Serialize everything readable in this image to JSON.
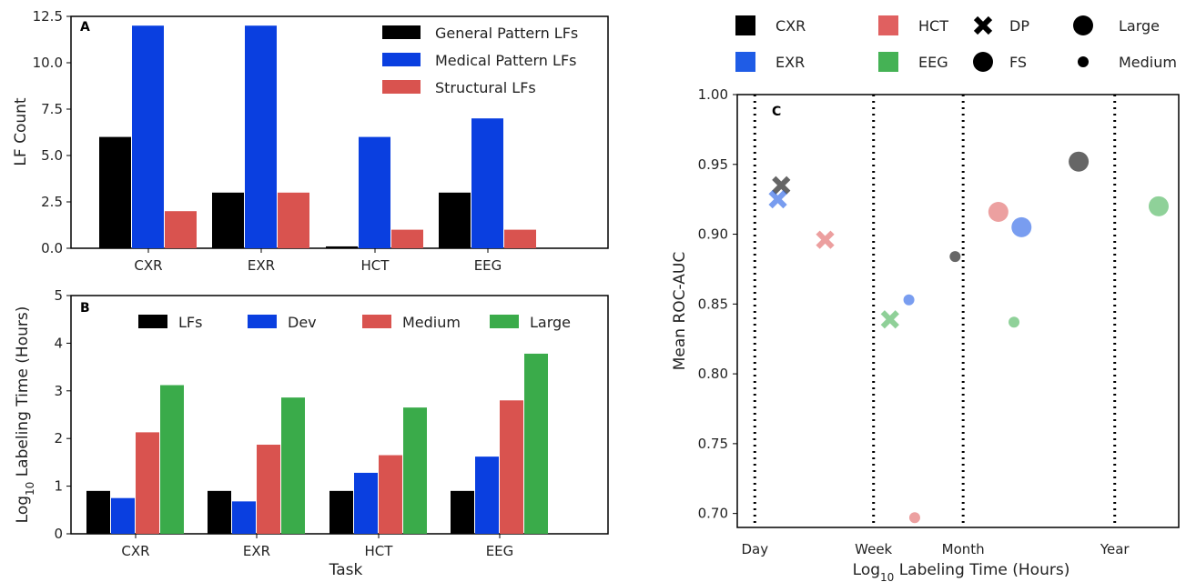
{
  "chart_data": [
    {
      "panel": "A",
      "type": "bar",
      "categories": [
        "CXR",
        "EXR",
        "HCT",
        "EEG"
      ],
      "series": [
        {
          "name": "General Pattern LFs",
          "values": [
            6,
            3,
            0.1,
            3
          ],
          "color": "#000000"
        },
        {
          "name": "Medical Pattern LFs",
          "values": [
            12,
            12,
            6,
            7
          ],
          "color": "#0a3fe0"
        },
        {
          "name": "Structural LFs",
          "values": [
            2,
            3,
            1,
            1
          ],
          "color": "#d9534f"
        }
      ],
      "xlabel": "",
      "ylabel": "LF Count",
      "ylim": [
        0,
        12.5
      ],
      "yticks": [
        "0.0",
        "2.5",
        "5.0",
        "7.5",
        "10.0",
        "12.5"
      ],
      "legend_position": "top-right"
    },
    {
      "panel": "B",
      "type": "bar",
      "categories": [
        "CXR",
        "EXR",
        "HCT",
        "EEG"
      ],
      "series": [
        {
          "name": "LFs",
          "values": [
            0.9,
            0.9,
            0.9,
            0.9
          ],
          "color": "#000000"
        },
        {
          "name": "Dev",
          "values": [
            0.75,
            0.68,
            1.28,
            1.62
          ],
          "color": "#0a3fe0"
        },
        {
          "name": "Medium",
          "values": [
            2.13,
            1.87,
            1.65,
            2.8
          ],
          "color": "#d9534f"
        },
        {
          "name": "Large",
          "values": [
            3.12,
            2.86,
            2.65,
            3.78
          ],
          "color": "#3aab4a"
        }
      ],
      "xlabel": "Task",
      "ylabel_pre": "Log",
      "ylabel_sub": "10",
      "ylabel_post": " Labeling Time (Hours)",
      "ylim": [
        0,
        5
      ],
      "yticks": [
        "0",
        "1",
        "2",
        "3",
        "4",
        "5"
      ],
      "legend_position": "top"
    },
    {
      "panel": "C",
      "type": "scatter",
      "xlabel_pre": "Log",
      "xlabel_sub": "10",
      "xlabel_post": " Labeling Time (Hours)",
      "ylabel": "Mean ROC-AUC",
      "xscale": "log",
      "xlim": [
        18,
        25000
      ],
      "ylim": [
        0.69,
        1.0
      ],
      "yticks": [
        "0.70",
        "0.75",
        "0.80",
        "0.85",
        "0.90",
        "0.95",
        "1.00"
      ],
      "reference_lines": [
        {
          "label": "Day",
          "x": 24
        },
        {
          "label": "Week",
          "x": 168
        },
        {
          "label": "Month",
          "x": 730
        },
        {
          "label": "Year",
          "x": 8760
        }
      ],
      "points": [
        {
          "task": "CXR",
          "method": "DP",
          "size": "Large",
          "x": 37,
          "y": 0.935
        },
        {
          "task": "EXR",
          "method": "DP",
          "size": "Large",
          "x": 35,
          "y": 0.925
        },
        {
          "task": "HCT",
          "method": "DP",
          "size": "Large",
          "x": 76,
          "y": 0.896
        },
        {
          "task": "EEG",
          "method": "DP",
          "size": "Large",
          "x": 220,
          "y": 0.839
        },
        {
          "task": "CXR",
          "method": "FS",
          "size": "Medium",
          "x": 640,
          "y": 0.884
        },
        {
          "task": "EXR",
          "method": "FS",
          "size": "Medium",
          "x": 300,
          "y": 0.853
        },
        {
          "task": "HCT",
          "method": "FS",
          "size": "Medium",
          "x": 330,
          "y": 0.697
        },
        {
          "task": "EEG",
          "method": "FS",
          "size": "Medium",
          "x": 1680,
          "y": 0.837
        },
        {
          "task": "CXR",
          "method": "FS",
          "size": "Large",
          "x": 4850,
          "y": 0.952
        },
        {
          "task": "EXR",
          "method": "FS",
          "size": "Large",
          "x": 1900,
          "y": 0.905
        },
        {
          "task": "HCT",
          "method": "FS",
          "size": "Large",
          "x": 1300,
          "y": 0.916
        },
        {
          "task": "EEG",
          "method": "FS",
          "size": "Large",
          "x": 18000,
          "y": 0.92
        }
      ],
      "legend": {
        "tasks": [
          {
            "name": "CXR",
            "color": "#000000"
          },
          {
            "name": "EXR",
            "color": "#1f5ce6"
          },
          {
            "name": "HCT",
            "color": "#e06060"
          },
          {
            "name": "EEG",
            "color": "#45b255"
          }
        ],
        "methods": [
          {
            "name": "DP",
            "marker": "x-marker-icon"
          },
          {
            "name": "FS",
            "marker": "circle-marker-icon"
          }
        ],
        "sizes": [
          {
            "name": "Large",
            "marker": "large-circle-icon"
          },
          {
            "name": "Medium",
            "marker": "small-circle-icon"
          }
        ],
        "position": "top"
      }
    }
  ]
}
